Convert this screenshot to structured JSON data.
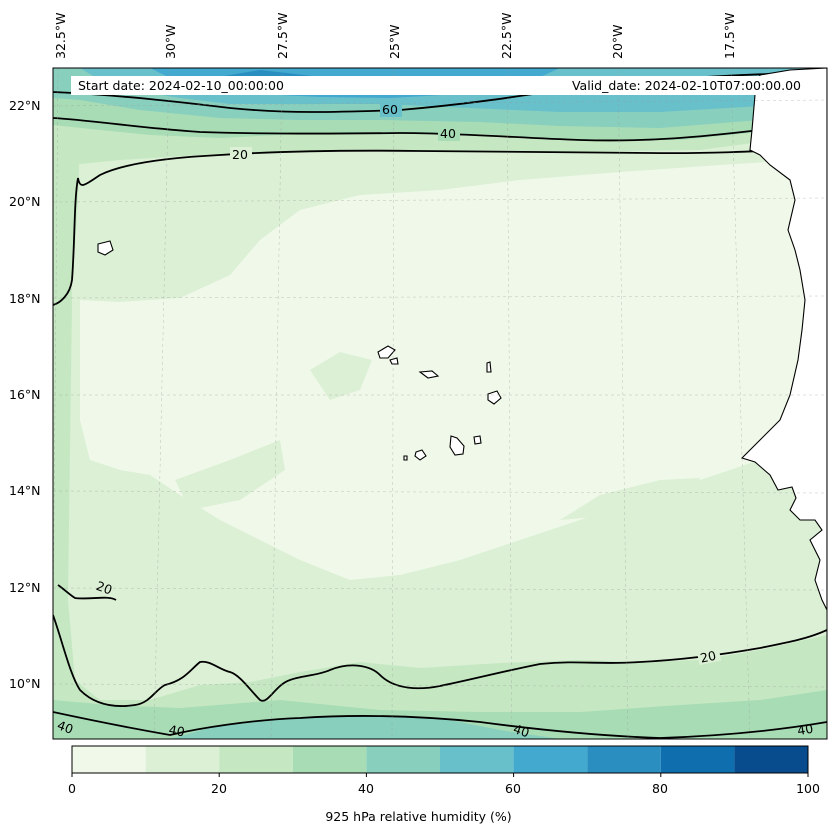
{
  "map": {
    "longitude_labels": [
      "32.5°W",
      "30°W",
      "27.5°W",
      "25°W",
      "22.5°W",
      "20°W",
      "17.5°W"
    ],
    "latitude_labels": [
      "22°N",
      "20°N",
      "18°N",
      "16°N",
      "14°N",
      "12°N",
      "10°N"
    ],
    "start_date": "Start date: 2024-02-10_00:00:00",
    "valid_date": "Valid_date: 2024-02-10T07:00:00.00",
    "contour_labels": [
      "60",
      "40",
      "20",
      "20",
      "20",
      "40",
      "40",
      "40",
      "40"
    ],
    "colors": {
      "ocean_driest": "#f0f9e9",
      "land_fill": "#ffffff",
      "coastline": "#000000"
    }
  },
  "colorbar": {
    "label": "925 hPa relative humidity (%)",
    "ticks": [
      "0",
      "20",
      "40",
      "60",
      "80",
      "100"
    ],
    "min": 0,
    "max": 100,
    "levels": [
      0,
      10,
      20,
      30,
      40,
      50,
      60,
      70,
      80,
      90,
      100
    ],
    "colors": [
      "#f0f9e9",
      "#dbf0d5",
      "#c5e8c2",
      "#a8dcb5",
      "#88cfbe",
      "#68c0ca",
      "#44a9cf",
      "#2a8ec0",
      "#0f6fae",
      "#084c8e"
    ]
  }
}
